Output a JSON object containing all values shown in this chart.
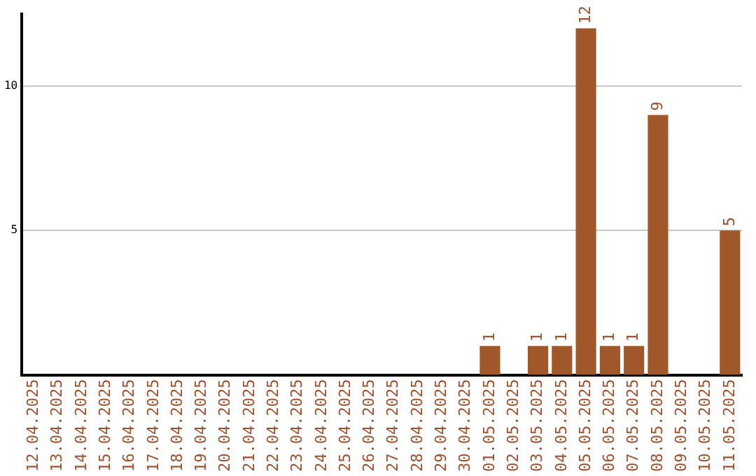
{
  "chart_data": {
    "type": "bar",
    "categories": [
      "12.04.2025",
      "13.04.2025",
      "14.04.2025",
      "15.04.2025",
      "16.04.2025",
      "17.04.2025",
      "18.04.2025",
      "19.04.2025",
      "20.04.2025",
      "21.04.2025",
      "22.04.2025",
      "23.04.2025",
      "24.04.2025",
      "25.04.2025",
      "26.04.2025",
      "27.04.2025",
      "28.04.2025",
      "29.04.2025",
      "30.04.2025",
      "01.05.2025",
      "02.05.2025",
      "03.05.2025",
      "04.05.2025",
      "05.05.2025",
      "06.05.2025",
      "07.05.2025",
      "08.05.2025",
      "09.05.2025",
      "10.05.2025",
      "11.05.2025"
    ],
    "values": [
      null,
      null,
      null,
      null,
      null,
      null,
      null,
      null,
      null,
      null,
      null,
      null,
      null,
      null,
      null,
      null,
      null,
      null,
      null,
      1,
      null,
      1,
      1,
      12,
      1,
      1,
      9,
      null,
      null,
      5
    ],
    "color": "#a0572a",
    "ylim": [
      0,
      12.5
    ],
    "yticks": [
      5,
      10
    ],
    "grid": "y",
    "legend": false,
    "data_labels": true
  }
}
